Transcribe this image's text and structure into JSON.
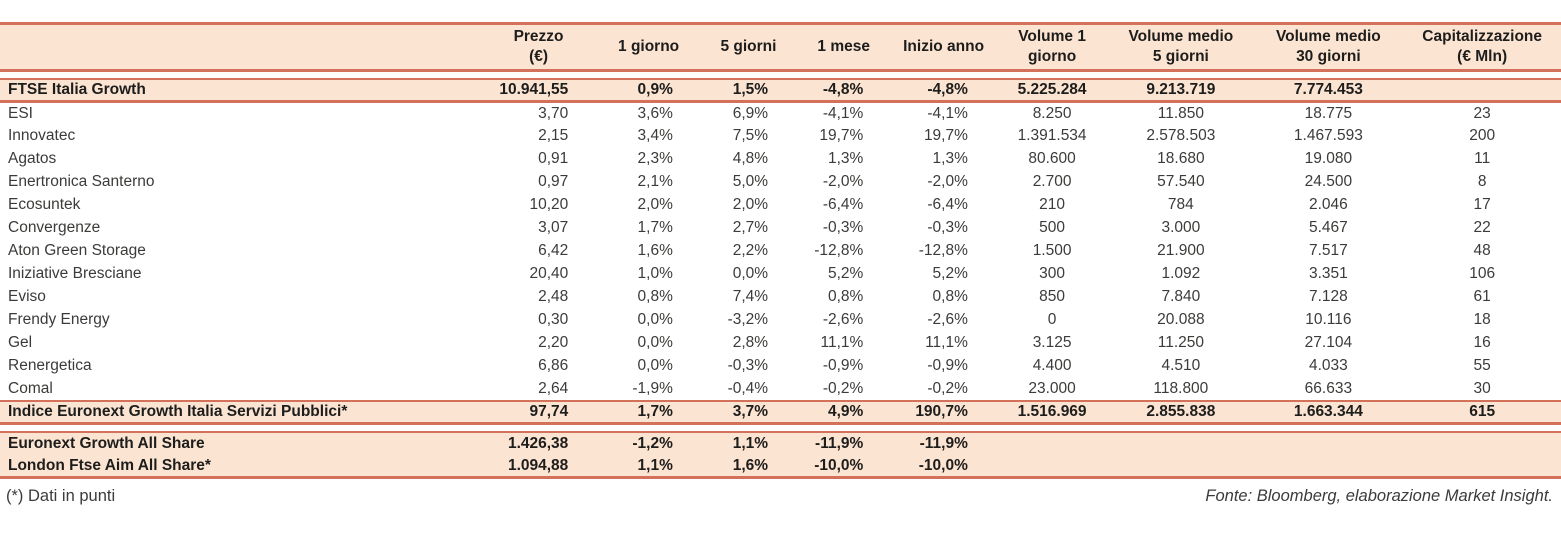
{
  "meta": {
    "note": "(*) Dati in punti",
    "source": "Fonte: Bloomberg, elaborazione Market Insight."
  },
  "colors": {
    "accent_line": "#d4715b",
    "band_bg": "#fce4d3",
    "text": "#3b3b39",
    "strong_text": "#1d1d1b"
  },
  "table": {
    "columns": [
      {
        "id": "name",
        "label": "",
        "align": "left"
      },
      {
        "id": "prezzo",
        "label": "Prezzo\n(€)",
        "align": "right"
      },
      {
        "id": "d1",
        "label": "1 giorno",
        "align": "right"
      },
      {
        "id": "d5",
        "label": "5 giorni",
        "align": "right"
      },
      {
        "id": "m1",
        "label": "1 mese",
        "align": "right"
      },
      {
        "id": "ytd",
        "label": "Inizio anno",
        "align": "right"
      },
      {
        "id": "vol1",
        "label": "Volume 1\ngiorno",
        "align": "center"
      },
      {
        "id": "vol5",
        "label": "Volume medio\n5 giorni",
        "align": "center"
      },
      {
        "id": "vol30",
        "label": "Volume medio\n30 giorni",
        "align": "center"
      },
      {
        "id": "cap",
        "label": "Capitalizzazione\n(€ Mln)",
        "align": "center"
      }
    ],
    "sections": [
      {
        "name": "index-row",
        "type": "highlight",
        "gap_before": true,
        "rows": [
          [
            "FTSE Italia Growth",
            "10.941,55",
            "0,9%",
            "1,5%",
            "-4,8%",
            "-4,8%",
            "5.225.284",
            "9.213.719",
            "7.774.453",
            ""
          ]
        ]
      },
      {
        "name": "stocks",
        "type": "plain",
        "gap_before": false,
        "rows": [
          [
            "ESI",
            "3,70",
            "3,6%",
            "6,9%",
            "-4,1%",
            "-4,1%",
            "8.250",
            "11.850",
            "18.775",
            "23"
          ],
          [
            "Innovatec",
            "2,15",
            "3,4%",
            "7,5%",
            "19,7%",
            "19,7%",
            "1.391.534",
            "2.578.503",
            "1.467.593",
            "200"
          ],
          [
            "Agatos",
            "0,91",
            "2,3%",
            "4,8%",
            "1,3%",
            "1,3%",
            "80.600",
            "18.680",
            "19.080",
            "11"
          ],
          [
            "Enertronica Santerno",
            "0,97",
            "2,1%",
            "5,0%",
            "-2,0%",
            "-2,0%",
            "2.700",
            "57.540",
            "24.500",
            "8"
          ],
          [
            "Ecosuntek",
            "10,20",
            "2,0%",
            "2,0%",
            "-6,4%",
            "-6,4%",
            "210",
            "784",
            "2.046",
            "17"
          ],
          [
            "Convergenze",
            "3,07",
            "1,7%",
            "2,7%",
            "-0,3%",
            "-0,3%",
            "500",
            "3.000",
            "5.467",
            "22"
          ],
          [
            "Aton Green Storage",
            "6,42",
            "1,6%",
            "2,2%",
            "-12,8%",
            "-12,8%",
            "1.500",
            "21.900",
            "7.517",
            "48"
          ],
          [
            "Iniziative Bresciane",
            "20,40",
            "1,0%",
            "0,0%",
            "5,2%",
            "5,2%",
            "300",
            "1.092",
            "3.351",
            "106"
          ],
          [
            "Eviso",
            "2,48",
            "0,8%",
            "7,4%",
            "0,8%",
            "0,8%",
            "850",
            "7.840",
            "7.128",
            "61"
          ],
          [
            "Frendy Energy",
            "0,30",
            "0,0%",
            "-3,2%",
            "-2,6%",
            "-2,6%",
            "0",
            "20.088",
            "10.116",
            "18"
          ],
          [
            "Gel",
            "2,20",
            "0,0%",
            "2,8%",
            "11,1%",
            "11,1%",
            "3.125",
            "11.250",
            "27.104",
            "16"
          ],
          [
            "Renergetica",
            "6,86",
            "0,0%",
            "-0,3%",
            "-0,9%",
            "-0,9%",
            "4.400",
            "4.510",
            "4.033",
            "55"
          ],
          [
            "Comal",
            "2,64",
            "-1,9%",
            "-0,4%",
            "-0,2%",
            "-0,2%",
            "23.000",
            "118.800",
            "66.633",
            "30"
          ]
        ]
      },
      {
        "name": "public-services-index-row",
        "type": "highlight",
        "gap_before": false,
        "rows": [
          [
            "Indice Euronext Growth Italia Servizi Pubblici*",
            "97,74",
            "1,7%",
            "3,7%",
            "4,9%",
            "190,7%",
            "1.516.969",
            "2.855.838",
            "1.663.344",
            "615"
          ]
        ]
      },
      {
        "name": "benchmarks",
        "type": "highlight",
        "gap_before": true,
        "rows": [
          [
            "Euronext Growth All Share",
            "1.426,38",
            "-1,2%",
            "1,1%",
            "-11,9%",
            "-11,9%",
            "",
            "",
            "",
            ""
          ],
          [
            "London Ftse Aim All Share*",
            "1.094,88",
            "1,1%",
            "1,6%",
            "-10,0%",
            "-10,0%",
            "",
            "",
            "",
            ""
          ]
        ]
      }
    ]
  }
}
